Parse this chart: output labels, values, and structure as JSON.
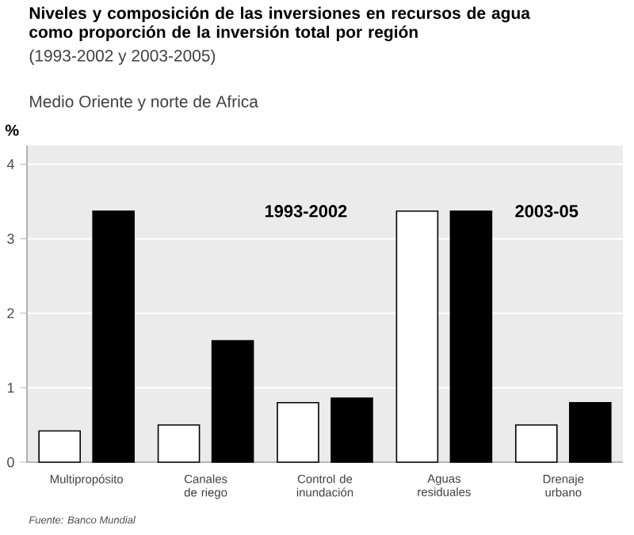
{
  "chart_data": {
    "type": "bar",
    "title": "Niveles y composición de las inversiones en recursos de agua como proporción de la inversión total por región",
    "subtitle": "(1993-2002 y 2003-2005)",
    "ylabel": "%",
    "categories": [
      "Multipropósito",
      "Canales de riego",
      "Control de inundación",
      "Aguas residuales",
      "Drenaje urbano"
    ],
    "series": [
      {
        "name": "1993-2002",
        "color": "#ffffff",
        "values": [
          0.42,
          0.5,
          0.8,
          3.37,
          0.5
        ]
      },
      {
        "name": "2003-05",
        "color": "#000000",
        "values": [
          3.37,
          1.63,
          0.86,
          3.37,
          0.8
        ]
      }
    ],
    "ylim": [
      0,
      4.25
    ],
    "yticks": [
      0,
      1,
      2,
      3,
      4
    ],
    "grid": "y",
    "legend": false,
    "annotations": [
      "Medio Oriente y norte de Africa",
      "Fuente: Banco Mundial"
    ]
  }
}
